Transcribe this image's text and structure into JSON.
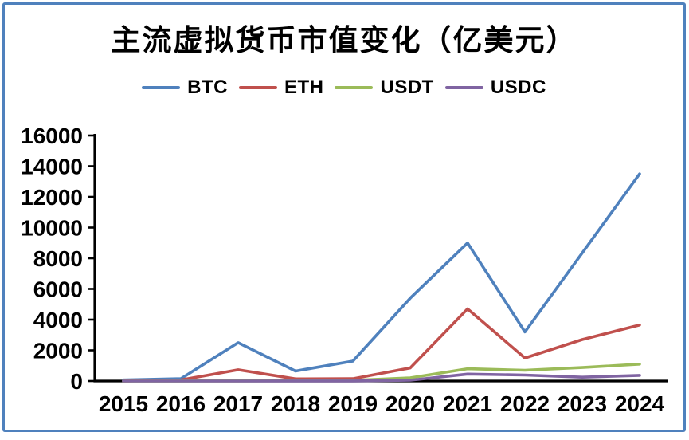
{
  "frame": {
    "border_color": "#4F81BD"
  },
  "chart_data": {
    "type": "line",
    "title": "主流虚拟货币市值变化（亿美元）",
    "categories": [
      "2015",
      "2016",
      "2017",
      "2018",
      "2019",
      "2020",
      "2021",
      "2022",
      "2023",
      "2024"
    ],
    "series": [
      {
        "name": "BTC",
        "color": "#4F81BD",
        "values": [
          70,
          150,
          2500,
          650,
          1300,
          5400,
          9000,
          3200,
          8350,
          13500
        ]
      },
      {
        "name": "ETH",
        "color": "#C0504D",
        "values": [
          5,
          70,
          730,
          140,
          150,
          850,
          4700,
          1500,
          2700,
          3650
        ]
      },
      {
        "name": "USDT",
        "color": "#9BBB59",
        "values": [
          0,
          5,
          10,
          20,
          40,
          210,
          800,
          700,
          880,
          1100
        ]
      },
      {
        "name": "USDC",
        "color": "#8064A2",
        "values": [
          0,
          0,
          0,
          3,
          5,
          50,
          450,
          390,
          250,
          370
        ]
      }
    ],
    "xlabel": "",
    "ylabel": "",
    "ylim": [
      0,
      16000
    ],
    "ytick_step": 2000,
    "y_tick_labels": [
      "0",
      "2000",
      "4000",
      "6000",
      "8000",
      "10000",
      "12000",
      "14000",
      "16000"
    ],
    "legend_position": "top",
    "grid": false,
    "axis_color": "#000000"
  }
}
